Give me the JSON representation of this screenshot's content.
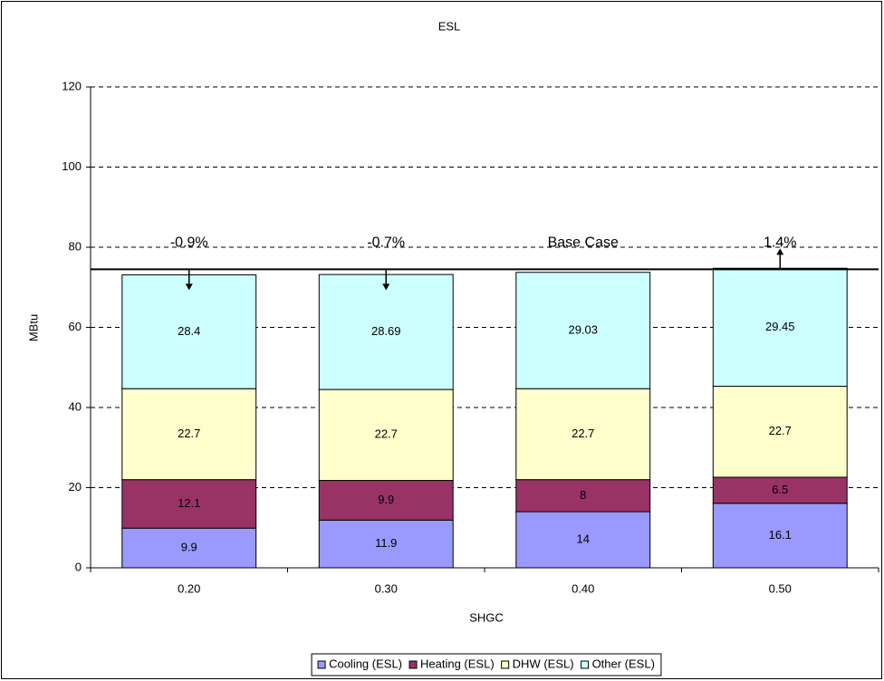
{
  "chart_data": {
    "type": "stacked_bar",
    "title": "ESL",
    "x_label": "SHGC",
    "y_label": "MBtu",
    "categories": [
      "0.20",
      "0.30",
      "0.40",
      "0.50"
    ],
    "series": [
      {
        "name": "Cooling (ESL)",
        "color": "#9999ff",
        "values": [
          9.9,
          11.9,
          14,
          16.1
        ]
      },
      {
        "name": "Heating (ESL)",
        "color": "#993366",
        "values": [
          12.1,
          9.9,
          8,
          6.5
        ]
      },
      {
        "name": "DHW (ESL)",
        "color": "#ffffcc",
        "values": [
          22.7,
          22.7,
          22.7,
          22.7
        ]
      },
      {
        "name": "Other (ESL)",
        "color": "#ccffff",
        "values": [
          28.4,
          28.69,
          29.03,
          29.45
        ]
      }
    ],
    "ylim": [
      0,
      120
    ],
    "yticks": [
      0,
      20,
      40,
      60,
      80,
      100,
      120
    ],
    "grid": true,
    "legend": "bottom",
    "reference_line": {
      "label": "Base Case",
      "value": 74.5
    },
    "annotations": [
      {
        "text": "-0.9%",
        "category": "0.20",
        "direction": "down"
      },
      {
        "text": "-0.7%",
        "category": "0.30",
        "direction": "down"
      },
      {
        "text": "1.4%",
        "category": "0.50",
        "direction": "up"
      }
    ]
  }
}
